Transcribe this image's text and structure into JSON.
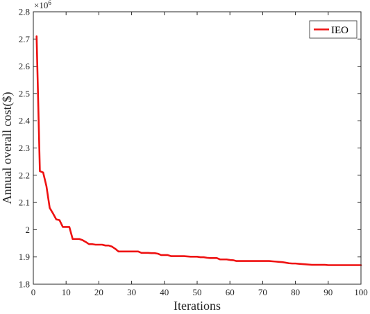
{
  "chart_data": {
    "type": "line",
    "title": "",
    "xlabel": "Iterations",
    "ylabel": "Annual overall cost($)",
    "y_exponent_base": "×10",
    "y_exponent_power": "6",
    "xlim": [
      0,
      100
    ],
    "ylim": [
      1.8,
      2.8
    ],
    "xticks": [
      0,
      10,
      20,
      30,
      40,
      50,
      60,
      70,
      80,
      90,
      100
    ],
    "yticks": [
      1.8,
      1.9,
      2.0,
      2.1,
      2.2,
      2.3,
      2.4,
      2.5,
      2.6,
      2.7,
      2.8
    ],
    "ytick_labels": [
      "1.8",
      "1.9",
      "2",
      "2.1",
      "2.2",
      "2.3",
      "2.4",
      "2.5",
      "2.6",
      "2.7",
      "2.8"
    ],
    "grid": false,
    "legend_position": "top-right",
    "series": [
      {
        "name": "IEO",
        "color": "#ee1111",
        "x": [
          1,
          2,
          3,
          4,
          5,
          6,
          7,
          8,
          9,
          10,
          11,
          12,
          13,
          14,
          15,
          16,
          17,
          18,
          19,
          20,
          21,
          22,
          23,
          24,
          25,
          26,
          27,
          28,
          29,
          30,
          31,
          32,
          33,
          34,
          35,
          36,
          37,
          38,
          39,
          40,
          41,
          42,
          43,
          44,
          45,
          46,
          47,
          48,
          49,
          50,
          51,
          52,
          53,
          54,
          55,
          56,
          57,
          58,
          59,
          60,
          61,
          62,
          63,
          64,
          65,
          66,
          67,
          68,
          69,
          70,
          71,
          72,
          73,
          74,
          75,
          76,
          77,
          78,
          79,
          80,
          81,
          82,
          83,
          84,
          85,
          86,
          87,
          88,
          89,
          90,
          91,
          92,
          93,
          94,
          95,
          96,
          97,
          98,
          99,
          100
        ],
        "y": [
          2.71,
          2.215,
          2.21,
          2.16,
          2.08,
          2.06,
          2.038,
          2.035,
          2.01,
          2.01,
          2.01,
          1.966,
          1.966,
          1.966,
          1.962,
          1.955,
          1.947,
          1.947,
          1.945,
          1.945,
          1.945,
          1.942,
          1.942,
          1.938,
          1.93,
          1.92,
          1.92,
          1.92,
          1.92,
          1.92,
          1.92,
          1.92,
          1.915,
          1.915,
          1.915,
          1.914,
          1.914,
          1.912,
          1.907,
          1.907,
          1.907,
          1.903,
          1.903,
          1.903,
          1.903,
          1.903,
          1.902,
          1.901,
          1.901,
          1.901,
          1.899,
          1.899,
          1.897,
          1.896,
          1.896,
          1.896,
          1.891,
          1.891,
          1.891,
          1.889,
          1.888,
          1.885,
          1.885,
          1.885,
          1.885,
          1.885,
          1.885,
          1.885,
          1.885,
          1.885,
          1.885,
          1.885,
          1.884,
          1.883,
          1.882,
          1.881,
          1.879,
          1.877,
          1.876,
          1.876,
          1.875,
          1.874,
          1.873,
          1.872,
          1.871,
          1.871,
          1.871,
          1.871,
          1.871,
          1.87,
          1.87,
          1.87,
          1.87,
          1.87,
          1.87,
          1.87,
          1.87,
          1.87,
          1.87,
          1.87
        ]
      }
    ]
  }
}
